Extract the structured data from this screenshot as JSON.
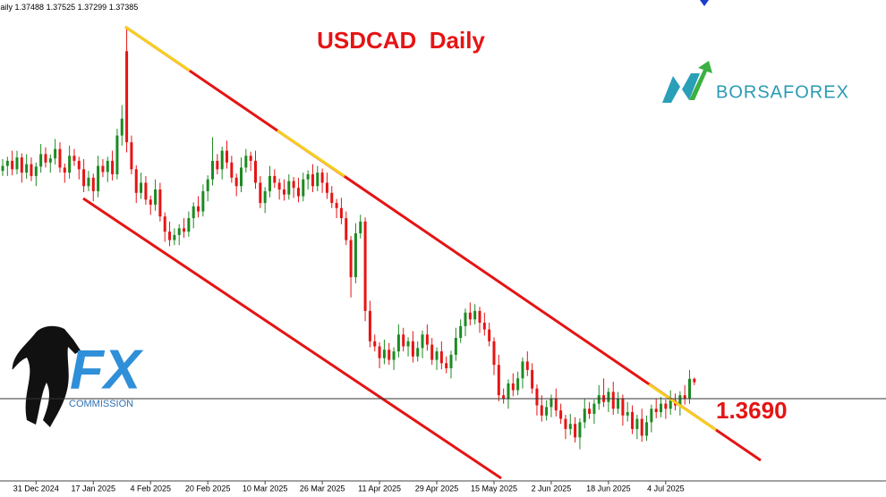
{
  "chart_data": {
    "type": "candlestick",
    "title": "USDCAD  Daily",
    "timeframe": "Daily",
    "categories": [
      null,
      null,
      null,
      null,
      null,
      null,
      null,
      "31 Dec 2024",
      null,
      null,
      null,
      null,
      null,
      null,
      null,
      null,
      null,
      null,
      null,
      "17 Jan 2025",
      null,
      null,
      null,
      null,
      null,
      null,
      null,
      null,
      null,
      null,
      null,
      "4 Feb 2025",
      null,
      null,
      null,
      null,
      null,
      null,
      null,
      null,
      null,
      null,
      null,
      "20 Feb 2025",
      null,
      null,
      null,
      null,
      null,
      null,
      null,
      null,
      null,
      null,
      null,
      "10 Mar 2025",
      null,
      null,
      null,
      null,
      null,
      null,
      null,
      null,
      null,
      null,
      null,
      "26 Mar 2025",
      null,
      null,
      null,
      null,
      null,
      null,
      null,
      null,
      null,
      null,
      null,
      "11 Apr 2025",
      null,
      null,
      null,
      null,
      null,
      null,
      null,
      null,
      null,
      null,
      null,
      "29 Apr 2025",
      null,
      null,
      null,
      null,
      null,
      null,
      null,
      null,
      null,
      null,
      null,
      "15 May 2025",
      null,
      null,
      null,
      null,
      null,
      null,
      null,
      null,
      null,
      null,
      null,
      "2 Jun 2025",
      null,
      null,
      null,
      null,
      null,
      null,
      null,
      null,
      null,
      null,
      null,
      "18 Jun 2025",
      null,
      null,
      null,
      null,
      null,
      null,
      null,
      null,
      null,
      null,
      null,
      "4 Jul 2025",
      null,
      null,
      null,
      null,
      null,
      null
    ],
    "open": [
      1.4365,
      1.438,
      1.4395,
      1.437,
      1.4405,
      1.436,
      1.4385,
      1.435,
      1.4378,
      1.4415,
      1.439,
      1.4402,
      1.443,
      1.4375,
      1.436,
      1.441,
      1.4395,
      1.437,
      1.432,
      1.4345,
      1.4305,
      1.438,
      1.4362,
      1.4395,
      1.4355,
      1.447,
      1.472,
      1.445,
      1.437,
      1.43,
      1.433,
      1.428,
      1.4265,
      1.431,
      1.423,
      1.4185,
      1.416,
      1.4175,
      1.4195,
      1.4185,
      1.4225,
      1.426,
      1.4245,
      1.4305,
      1.434,
      1.4395,
      1.437,
      1.4425,
      1.439,
      1.4345,
      1.432,
      1.4375,
      1.441,
      1.4395,
      1.433,
      1.427,
      1.4305,
      1.435,
      1.433,
      1.431,
      1.4295,
      1.4335,
      1.4315,
      1.429,
      1.434,
      1.4355,
      1.432,
      1.436,
      1.433,
      1.43,
      1.427,
      1.4255,
      1.4225,
      1.416,
      1.405,
      1.418,
      1.4215,
      1.395,
      1.386,
      1.3845,
      1.381,
      1.3835,
      1.3805,
      1.383,
      1.388,
      1.3845,
      1.386,
      1.3815,
      1.384,
      1.388,
      1.385,
      1.3805,
      1.383,
      1.3795,
      1.378,
      1.382,
      1.387,
      1.3905,
      1.3945,
      1.3925,
      1.395,
      1.3915,
      1.3895,
      1.386,
      1.379,
      1.37,
      1.369,
      1.3735,
      1.3715,
      1.375,
      1.38,
      1.3775,
      1.372,
      1.367,
      1.364,
      1.3665,
      1.369,
      1.3655,
      1.363,
      1.36,
      1.3615,
      1.3575,
      1.362,
      1.366,
      1.3645,
      1.3675,
      1.37,
      1.368,
      1.371,
      1.366,
      1.369,
      1.364,
      1.365,
      1.36,
      1.363,
      1.358,
      1.362,
      1.366,
      1.365,
      1.3675,
      1.366,
      1.3685,
      1.367,
      1.37,
      1.369,
      1.37488
    ],
    "high": [
      1.44,
      1.4407,
      1.4425,
      1.4425,
      1.4417,
      1.4415,
      1.4405,
      1.439,
      1.4445,
      1.4435,
      1.4414,
      1.446,
      1.445,
      1.4387,
      1.444,
      1.443,
      1.4407,
      1.44,
      1.4365,
      1.4357,
      1.441,
      1.44,
      1.4407,
      1.4425,
      1.449,
      1.456,
      1.4793,
      1.447,
      1.4382,
      1.436,
      1.435,
      1.4292,
      1.434,
      1.433,
      1.4242,
      1.4215,
      1.4195,
      1.4207,
      1.4225,
      1.4245,
      1.4272,
      1.429,
      1.4325,
      1.4352,
      1.4465,
      1.4415,
      1.4437,
      1.4455,
      1.441,
      1.4357,
      1.4405,
      1.443,
      1.4422,
      1.4425,
      1.435,
      1.4317,
      1.438,
      1.437,
      1.4342,
      1.434,
      1.4355,
      1.4347,
      1.4345,
      1.436,
      1.4367,
      1.4385,
      1.438,
      1.4372,
      1.436,
      1.432,
      1.4282,
      1.4285,
      1.4245,
      1.4172,
      1.421,
      1.4235,
      1.4227,
      1.398,
      1.388,
      1.3857,
      1.3865,
      1.3855,
      1.3842,
      1.391,
      1.39,
      1.3872,
      1.389,
      1.386,
      1.3892,
      1.391,
      1.387,
      1.3842,
      1.386,
      1.3815,
      1.3832,
      1.39,
      1.3925,
      1.3957,
      1.3975,
      1.397,
      1.3962,
      1.3945,
      1.3915,
      1.3872,
      1.382,
      1.372,
      1.3747,
      1.3765,
      1.377,
      1.3812,
      1.383,
      1.3795,
      1.3732,
      1.37,
      1.3685,
      1.3702,
      1.372,
      1.3675,
      1.3642,
      1.3645,
      1.3635,
      1.3632,
      1.369,
      1.368,
      1.3687,
      1.373,
      1.375,
      1.3722,
      1.374,
      1.371,
      1.3702,
      1.368,
      1.367,
      1.3642,
      1.366,
      1.364,
      1.3672,
      1.369,
      1.3695,
      1.3687,
      1.3715,
      1.3705,
      1.3712,
      1.373,
      1.3775,
      1.37525
    ],
    "low": [
      1.435,
      1.435,
      1.4352,
      1.4355,
      1.433,
      1.4342,
      1.4335,
      1.432,
      1.436,
      1.4375,
      1.436,
      1.4384,
      1.436,
      1.433,
      1.4342,
      1.438,
      1.434,
      1.4302,
      1.4305,
      1.4275,
      1.4287,
      1.4347,
      1.4332,
      1.4337,
      1.434,
      1.444,
      1.442,
      1.4355,
      1.427,
      1.4282,
      1.4265,
      1.4235,
      1.4247,
      1.4215,
      1.4155,
      1.4142,
      1.4145,
      1.4145,
      1.4167,
      1.417,
      1.4195,
      1.4227,
      1.423,
      1.4275,
      1.4322,
      1.4355,
      1.434,
      1.4372,
      1.433,
      1.429,
      1.4302,
      1.436,
      1.4365,
      1.4312,
      1.4255,
      1.424,
      1.4287,
      1.4315,
      1.428,
      1.4277,
      1.428,
      1.4285,
      1.4272,
      1.4275,
      1.431,
      1.4302,
      1.4305,
      1.43,
      1.4282,
      1.4255,
      1.4225,
      1.4207,
      1.4145,
      1.399,
      1.4032,
      1.4165,
      1.392,
      1.3842,
      1.383,
      1.378,
      1.3792,
      1.379,
      1.3775,
      1.3812,
      1.383,
      1.3815,
      1.3797,
      1.38,
      1.381,
      1.3832,
      1.379,
      1.3775,
      1.3777,
      1.3765,
      1.375,
      1.3802,
      1.3855,
      1.3875,
      1.3907,
      1.391,
      1.3885,
      1.3877,
      1.3845,
      1.376,
      1.3682,
      1.3675,
      1.366,
      1.3697,
      1.37,
      1.372,
      1.3757,
      1.3705,
      1.364,
      1.3622,
      1.3625,
      1.3635,
      1.3637,
      1.3615,
      1.357,
      1.3582,
      1.356,
      1.354,
      1.3602,
      1.363,
      1.3615,
      1.3657,
      1.3665,
      1.365,
      1.3642,
      1.3645,
      1.361,
      1.3622,
      1.3585,
      1.357,
      1.3562,
      1.3565,
      1.359,
      1.3632,
      1.3635,
      1.363,
      1.3642,
      1.3655,
      1.364,
      1.3672,
      1.3675,
      1.37299
    ],
    "close": [
      1.438,
      1.4395,
      1.437,
      1.4405,
      1.436,
      1.4385,
      1.435,
      1.4378,
      1.4415,
      1.439,
      1.4402,
      1.443,
      1.4375,
      1.436,
      1.441,
      1.4395,
      1.437,
      1.432,
      1.4345,
      1.4305,
      1.438,
      1.4362,
      1.4395,
      1.4355,
      1.447,
      1.452,
      1.445,
      1.437,
      1.43,
      1.433,
      1.428,
      1.4265,
      1.431,
      1.423,
      1.4185,
      1.416,
      1.4175,
      1.4195,
      1.4185,
      1.4225,
      1.426,
      1.4245,
      1.4305,
      1.434,
      1.4395,
      1.437,
      1.4425,
      1.439,
      1.4345,
      1.432,
      1.4375,
      1.441,
      1.4395,
      1.433,
      1.427,
      1.4305,
      1.435,
      1.433,
      1.431,
      1.4295,
      1.4335,
      1.4315,
      1.429,
      1.434,
      1.4355,
      1.432,
      1.436,
      1.433,
      1.43,
      1.427,
      1.4255,
      1.4225,
      1.416,
      1.405,
      1.418,
      1.4215,
      1.395,
      1.386,
      1.3845,
      1.381,
      1.3835,
      1.3805,
      1.383,
      1.388,
      1.3845,
      1.386,
      1.3815,
      1.384,
      1.388,
      1.385,
      1.3805,
      1.383,
      1.3795,
      1.378,
      1.382,
      1.387,
      1.3905,
      1.3945,
      1.3925,
      1.395,
      1.3915,
      1.3895,
      1.386,
      1.379,
      1.37,
      1.369,
      1.3735,
      1.3715,
      1.375,
      1.38,
      1.3775,
      1.372,
      1.367,
      1.364,
      1.3665,
      1.369,
      1.3655,
      1.363,
      1.36,
      1.3615,
      1.3575,
      1.362,
      1.366,
      1.3645,
      1.3675,
      1.37,
      1.368,
      1.371,
      1.366,
      1.369,
      1.364,
      1.365,
      1.36,
      1.363,
      1.358,
      1.362,
      1.366,
      1.365,
      1.3675,
      1.366,
      1.3685,
      1.367,
      1.37,
      1.369,
      1.37488,
      1.37385
    ],
    "up_color": "#1c8a22",
    "down_color": "#e51414",
    "ylim": [
      1.3454,
      1.484
    ],
    "level": 1.369,
    "level_label": "1.3690"
  },
  "watermarks": {
    "borsaforex": "BORSAFOREX",
    "fx": "FX",
    "commission": "COMMISSION"
  }
}
